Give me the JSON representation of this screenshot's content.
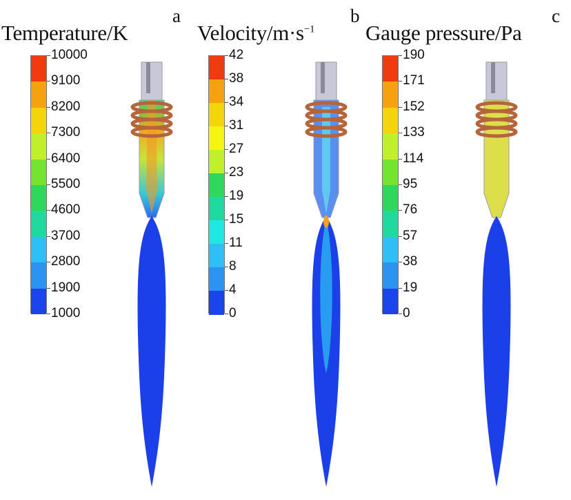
{
  "panels": [
    {
      "letter": "a",
      "title": "Temperature/K",
      "ticks": [
        "10000",
        "9100",
        "8200",
        "7300",
        "6400",
        "5500",
        "4600",
        "3700",
        "2800",
        "1900",
        "1000"
      ]
    },
    {
      "letter": "b",
      "title": "Velocity/m·s",
      "title_sup": "−1",
      "ticks": [
        "42",
        "38",
        "34",
        "31",
        "27",
        "23",
        "19",
        "15",
        "11",
        "8",
        "4",
        "0"
      ]
    },
    {
      "letter": "c",
      "title": "Gauge pressure/Pa",
      "ticks": [
        "190",
        "171",
        "152",
        "133",
        "114",
        "95",
        "76",
        "57",
        "38",
        "19",
        "0"
      ]
    }
  ],
  "colormap": {
    "bands_top_to_bottom": [
      "#f03a10",
      "#f5a20e",
      "#f4d40b",
      "#f5f513",
      "#c0f02a",
      "#74e42e",
      "#2dd85d",
      "#1ed9a0",
      "#1fe8e3",
      "#2ebff6",
      "#2b93f1",
      "#1b45ec"
    ]
  }
}
